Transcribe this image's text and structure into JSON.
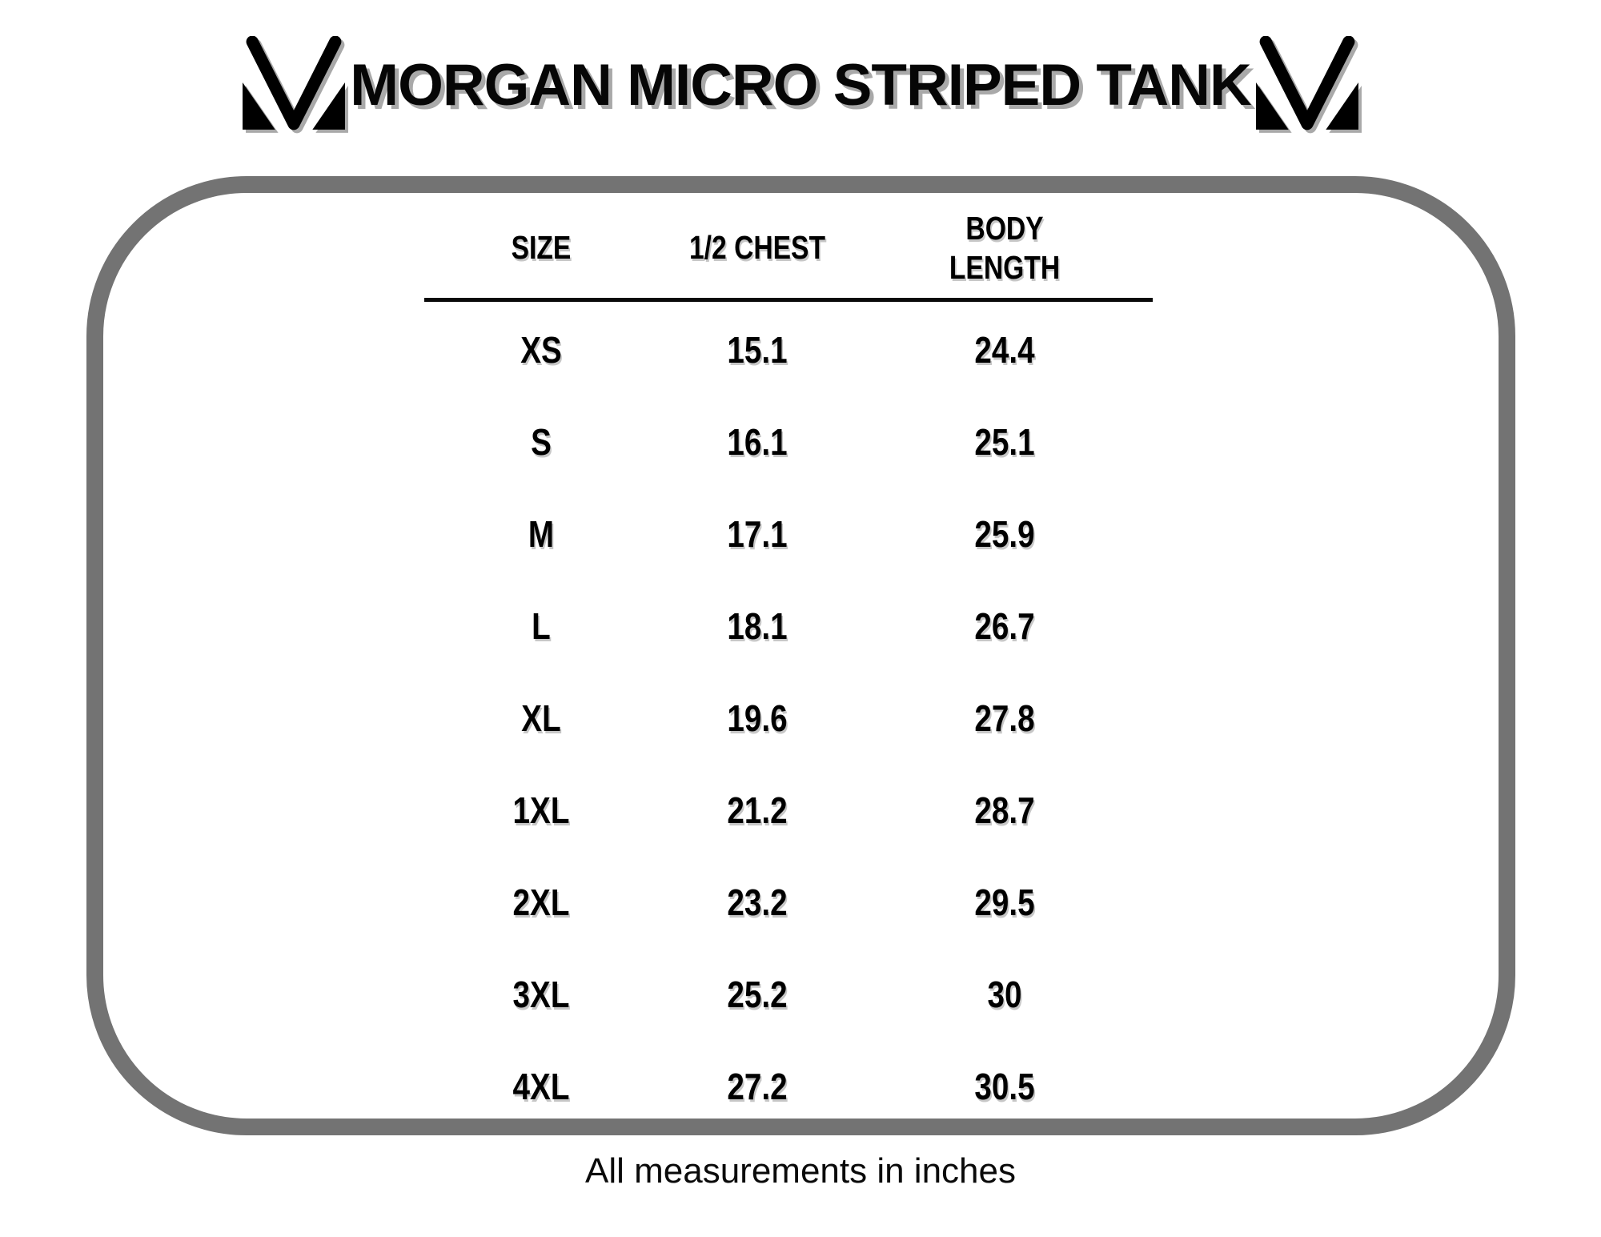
{
  "header": {
    "title": "MORGAN MICRO STRIPED TANK",
    "logo_name": "stylized-M-monogram",
    "logo_color": "#000000"
  },
  "panel": {
    "border_color": "#737373"
  },
  "table": {
    "headers": [
      "SIZE",
      "1/2 CHEST",
      "BODY\nLENGTH"
    ]
  },
  "chart_data": {
    "type": "table",
    "title": "MORGAN MICRO STRIPED TANK",
    "columns": [
      "SIZE",
      "1/2 CHEST",
      "BODY LENGTH"
    ],
    "rows": [
      {
        "size": "XS",
        "half_chest": 15.1,
        "body_length": 24.4
      },
      {
        "size": "S",
        "half_chest": 16.1,
        "body_length": 25.1
      },
      {
        "size": "M",
        "half_chest": 17.1,
        "body_length": 25.9
      },
      {
        "size": "L",
        "half_chest": 18.1,
        "body_length": 26.7
      },
      {
        "size": "XL",
        "half_chest": 19.6,
        "body_length": 27.8
      },
      {
        "size": "1XL",
        "half_chest": 21.2,
        "body_length": 28.7
      },
      {
        "size": "2XL",
        "half_chest": 23.2,
        "body_length": 29.5
      },
      {
        "size": "3XL",
        "half_chest": 25.2,
        "body_length": 30
      },
      {
        "size": "4XL",
        "half_chest": 27.2,
        "body_length": 30.5
      }
    ],
    "note": "All measurements in inches",
    "units": "inches",
    "text_color": "#000000",
    "shadow_color": "#a9a9a9",
    "legend_position": "none",
    "grid": false
  }
}
